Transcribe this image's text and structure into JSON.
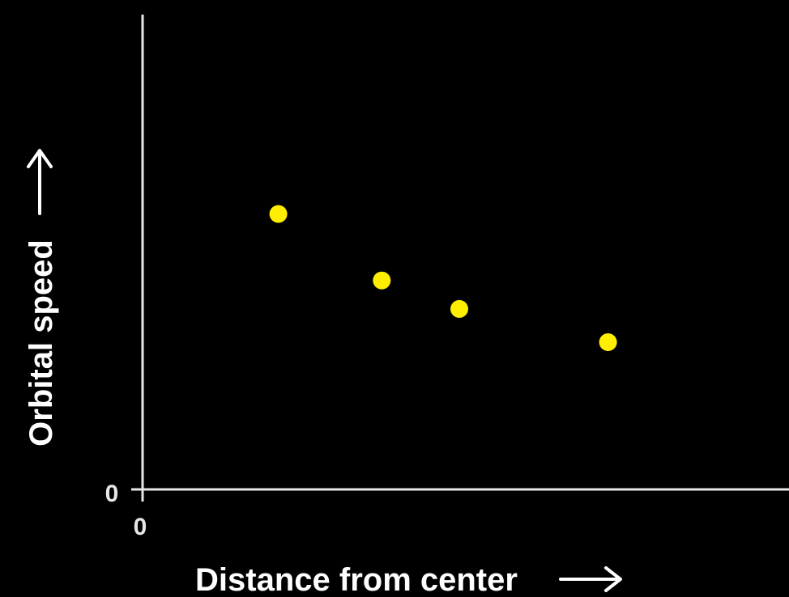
{
  "colors": {
    "background": "#000000",
    "axis": "#e6e6e6",
    "point": "#ffee00",
    "text": "#ffffff"
  },
  "chart_data": {
    "type": "scatter",
    "title": "",
    "xlabel": "Distance from center",
    "ylabel": "Orbital speed",
    "x_tick_label": "0",
    "y_tick_label": "0",
    "xlim": [
      0,
      10
    ],
    "ylim": [
      0,
      10
    ],
    "grid": false,
    "axis_arrows": "x-right, y-up",
    "series": [
      {
        "color": "#ffee00",
        "points": [
          {
            "x": 2.1,
            "y": 5.8
          },
          {
            "x": 3.7,
            "y": 4.4
          },
          {
            "x": 4.9,
            "y": 3.8
          },
          {
            "x": 7.2,
            "y": 3.1
          }
        ]
      }
    ]
  }
}
